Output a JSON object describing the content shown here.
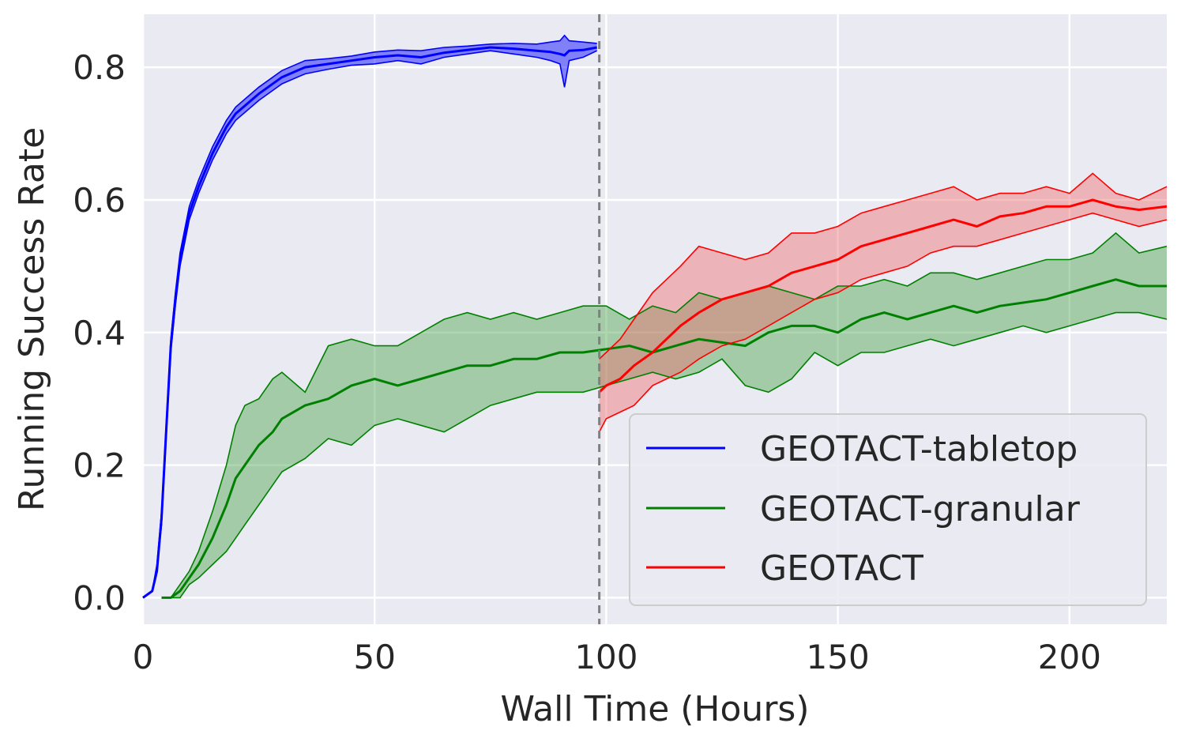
{
  "chart_data": {
    "type": "line",
    "title": "",
    "xlabel": "Wall Time (Hours)",
    "ylabel": "Running Success Rate",
    "xlim": [
      0,
      221
    ],
    "ylim": [
      -0.04,
      0.88
    ],
    "x_ticks": [
      0,
      50,
      100,
      150,
      200
    ],
    "y_ticks": [
      0.0,
      0.2,
      0.4,
      0.6,
      0.8
    ],
    "x_tick_labels": [
      "0",
      "50",
      "100",
      "150",
      "200"
    ],
    "y_tick_labels": [
      "0.0",
      "0.2",
      "0.4",
      "0.6",
      "0.8"
    ],
    "grid": true,
    "legend_position": "lower-right",
    "vline": {
      "x": 98.5,
      "style": "dashed",
      "color": "#808080"
    },
    "series": [
      {
        "name": "GEOTACT-tabletop",
        "color": "#0000ff",
        "x": [
          0,
          2,
          3,
          4,
          5,
          6,
          7,
          8,
          10,
          12,
          15,
          18,
          20,
          25,
          30,
          35,
          40,
          45,
          50,
          55,
          60,
          65,
          70,
          75,
          80,
          85,
          88,
          90,
          91,
          92,
          95,
          98
        ],
        "mean": [
          0.0,
          0.01,
          0.04,
          0.12,
          0.25,
          0.38,
          0.45,
          0.51,
          0.58,
          0.62,
          0.67,
          0.71,
          0.73,
          0.76,
          0.785,
          0.8,
          0.805,
          0.81,
          0.815,
          0.818,
          0.815,
          0.822,
          0.826,
          0.83,
          0.828,
          0.825,
          0.823,
          0.82,
          0.818,
          0.825,
          0.826,
          0.83
        ],
        "lower": [
          0.0,
          0.01,
          0.04,
          0.11,
          0.24,
          0.37,
          0.44,
          0.5,
          0.57,
          0.61,
          0.66,
          0.7,
          0.72,
          0.75,
          0.775,
          0.79,
          0.797,
          0.803,
          0.805,
          0.81,
          0.805,
          0.815,
          0.82,
          0.825,
          0.82,
          0.815,
          0.81,
          0.805,
          0.77,
          0.81,
          0.815,
          0.825
        ],
        "upper": [
          0.0,
          0.01,
          0.05,
          0.13,
          0.26,
          0.39,
          0.46,
          0.52,
          0.59,
          0.63,
          0.68,
          0.72,
          0.74,
          0.77,
          0.795,
          0.81,
          0.813,
          0.817,
          0.823,
          0.826,
          0.825,
          0.83,
          0.832,
          0.835,
          0.836,
          0.835,
          0.838,
          0.84,
          0.848,
          0.84,
          0.838,
          0.836
        ]
      },
      {
        "name": "GEOTACT-granular",
        "color": "#008000",
        "fill": "#4da64d",
        "x": [
          4,
          6,
          8,
          10,
          12,
          15,
          18,
          20,
          22,
          25,
          28,
          30,
          35,
          40,
          45,
          50,
          55,
          60,
          65,
          70,
          75,
          80,
          85,
          90,
          95,
          100,
          105,
          110,
          115,
          120,
          125,
          130,
          135,
          140,
          145,
          150,
          155,
          160,
          165,
          170,
          175,
          180,
          185,
          190,
          195,
          200,
          205,
          210,
          215,
          221
        ],
        "mean": [
          0.0,
          0.0,
          0.01,
          0.03,
          0.05,
          0.09,
          0.14,
          0.18,
          0.2,
          0.23,
          0.25,
          0.27,
          0.29,
          0.3,
          0.32,
          0.33,
          0.32,
          0.33,
          0.34,
          0.35,
          0.35,
          0.36,
          0.36,
          0.37,
          0.37,
          0.375,
          0.38,
          0.37,
          0.38,
          0.39,
          0.385,
          0.38,
          0.4,
          0.41,
          0.41,
          0.4,
          0.42,
          0.43,
          0.42,
          0.43,
          0.44,
          0.43,
          0.44,
          0.445,
          0.45,
          0.46,
          0.47,
          0.48,
          0.47,
          0.47
        ],
        "lower": [
          0.0,
          0.0,
          0.0,
          0.02,
          0.03,
          0.05,
          0.07,
          0.09,
          0.11,
          0.14,
          0.17,
          0.19,
          0.21,
          0.24,
          0.23,
          0.26,
          0.27,
          0.26,
          0.25,
          0.27,
          0.29,
          0.3,
          0.31,
          0.31,
          0.31,
          0.32,
          0.33,
          0.34,
          0.33,
          0.34,
          0.36,
          0.32,
          0.31,
          0.33,
          0.37,
          0.35,
          0.37,
          0.37,
          0.38,
          0.39,
          0.38,
          0.39,
          0.4,
          0.41,
          0.4,
          0.41,
          0.42,
          0.43,
          0.43,
          0.42
        ],
        "upper": [
          0.0,
          0.0,
          0.02,
          0.04,
          0.07,
          0.13,
          0.2,
          0.26,
          0.29,
          0.3,
          0.33,
          0.34,
          0.31,
          0.38,
          0.39,
          0.38,
          0.38,
          0.4,
          0.42,
          0.43,
          0.42,
          0.43,
          0.42,
          0.43,
          0.44,
          0.44,
          0.42,
          0.44,
          0.43,
          0.46,
          0.45,
          0.46,
          0.47,
          0.46,
          0.45,
          0.47,
          0.47,
          0.48,
          0.47,
          0.49,
          0.49,
          0.48,
          0.49,
          0.5,
          0.51,
          0.51,
          0.52,
          0.55,
          0.52,
          0.53
        ]
      },
      {
        "name": "GEOTACT",
        "color": "#ff0000",
        "fill": "#f07070",
        "x": [
          98.5,
          100,
          103,
          106,
          110,
          113,
          116,
          120,
          125,
          130,
          135,
          140,
          145,
          150,
          155,
          160,
          165,
          170,
          175,
          180,
          185,
          190,
          195,
          200,
          205,
          210,
          215,
          221
        ],
        "mean": [
          0.31,
          0.32,
          0.33,
          0.35,
          0.37,
          0.39,
          0.41,
          0.43,
          0.45,
          0.46,
          0.47,
          0.49,
          0.5,
          0.51,
          0.53,
          0.54,
          0.55,
          0.56,
          0.57,
          0.56,
          0.575,
          0.58,
          0.59,
          0.59,
          0.6,
          0.59,
          0.585,
          0.59
        ],
        "lower": [
          0.25,
          0.27,
          0.28,
          0.29,
          0.32,
          0.33,
          0.34,
          0.36,
          0.38,
          0.39,
          0.41,
          0.43,
          0.45,
          0.46,
          0.48,
          0.49,
          0.5,
          0.52,
          0.53,
          0.53,
          0.54,
          0.55,
          0.56,
          0.57,
          0.58,
          0.57,
          0.56,
          0.57
        ],
        "upper": [
          0.36,
          0.37,
          0.39,
          0.42,
          0.46,
          0.48,
          0.5,
          0.53,
          0.52,
          0.51,
          0.52,
          0.55,
          0.55,
          0.56,
          0.58,
          0.59,
          0.6,
          0.61,
          0.62,
          0.6,
          0.61,
          0.61,
          0.62,
          0.61,
          0.64,
          0.61,
          0.6,
          0.62
        ]
      }
    ]
  }
}
